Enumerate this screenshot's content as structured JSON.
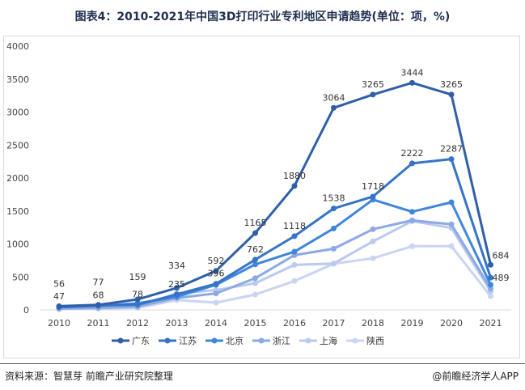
{
  "title": "图表4：2010-2021年中国3D打印行业专利地区申请趋势(单位：项，%)",
  "source": "资料来源：智慧芽 前瞻产业研究院整理",
  "brand": "@前瞻经济学人APP",
  "chart_data": {
    "type": "line",
    "title": "图表4：2010-2021年中国3D打印行业专利地区申请趋势(单位：项，%)",
    "categories": [
      "2010",
      "2011",
      "2012",
      "2013",
      "2014",
      "2015",
      "2016",
      "2017",
      "2018",
      "2019",
      "2020",
      "2021"
    ],
    "ylim": [
      0,
      4000
    ],
    "yticks": [
      0,
      500,
      1000,
      1500,
      2000,
      2500,
      3000,
      3500,
      4000
    ],
    "grid": false,
    "legend": "bottom",
    "series": [
      {
        "name": "广东",
        "color": "#2f5fa8",
        "labels": true,
        "values": [
          56,
          77,
          159,
          334,
          592,
          1165,
          1880,
          3064,
          3265,
          3444,
          3265,
          684
        ]
      },
      {
        "name": "江苏",
        "color": "#3574c6",
        "labels": true,
        "values": [
          47,
          68,
          78,
          235,
          396,
          762,
          1118,
          1538,
          1718,
          2222,
          2287,
          489
        ]
      },
      {
        "name": "北京",
        "color": "#3f86dc",
        "labels": false,
        "values": [
          40,
          60,
          100,
          200,
          380,
          690,
          883,
          1235,
          1672,
          1488,
          1632,
          380
        ]
      },
      {
        "name": "浙江",
        "color": "#8ba9e3",
        "labels": false,
        "values": [
          20,
          30,
          50,
          180,
          250,
          480,
          830,
          928,
          1223,
          1358,
          1297,
          323
        ]
      },
      {
        "name": "上海",
        "color": "#b9c9f0",
        "labels": false,
        "values": [
          15,
          25,
          40,
          250,
          300,
          405,
          683,
          703,
          1039,
          1346,
          1243,
          282
        ]
      },
      {
        "name": "陕西",
        "color": "#cad4f3",
        "labels": false,
        "values": [
          10,
          20,
          30,
          150,
          110,
          233,
          438,
          700,
          782,
          966,
          966,
          209
        ]
      }
    ]
  }
}
